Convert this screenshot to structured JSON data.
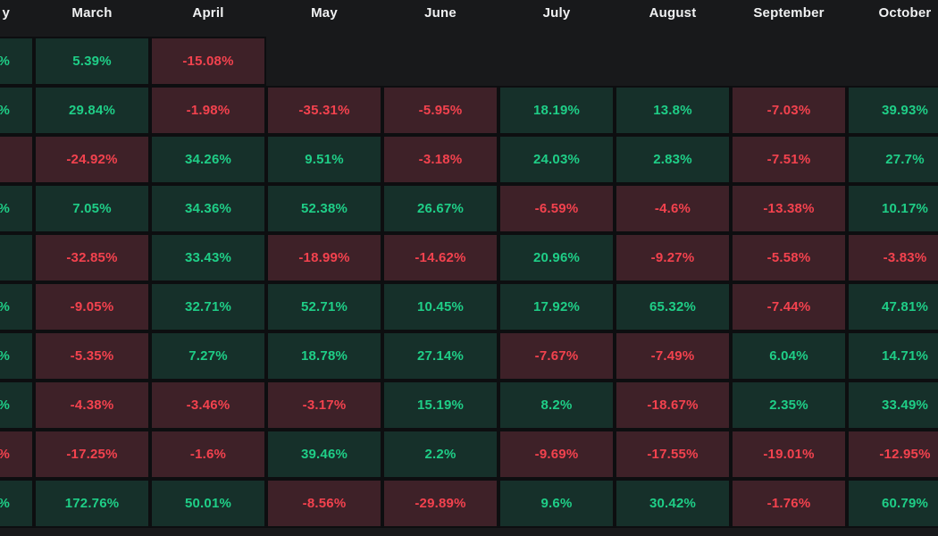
{
  "colors": {
    "page_background": "#18191b",
    "grid_line": "#0d0e10",
    "positive_cell_background": "#16302a",
    "positive_text": "#1fce87",
    "negative_cell_background": "#3e2128",
    "negative_text": "#f3424e",
    "header_text": "#f0f1f2"
  },
  "chart_data": {
    "type": "heatmap",
    "unit": "%",
    "note_layout": "monthly returns table, first column and last column clipped by viewport edges",
    "columns": [
      {
        "label": "y",
        "partial": true
      },
      {
        "label": "March",
        "partial": false
      },
      {
        "label": "April",
        "partial": false
      },
      {
        "label": "May",
        "partial": false
      },
      {
        "label": "June",
        "partial": false
      },
      {
        "label": "July",
        "partial": false
      },
      {
        "label": "August",
        "partial": false
      },
      {
        "label": "September",
        "partial": false
      },
      {
        "label": "October",
        "partial": false
      }
    ],
    "rows": [
      [
        {
          "value": "%",
          "sign": "pos"
        },
        {
          "value": "5.39%",
          "sign": "pos"
        },
        {
          "value": "-15.08%",
          "sign": "neg"
        },
        null,
        null,
        null,
        null,
        null,
        null
      ],
      [
        {
          "value": "%",
          "sign": "pos"
        },
        {
          "value": "29.84%",
          "sign": "pos"
        },
        {
          "value": "-1.98%",
          "sign": "neg"
        },
        {
          "value": "-35.31%",
          "sign": "neg"
        },
        {
          "value": "-5.95%",
          "sign": "neg"
        },
        {
          "value": "18.19%",
          "sign": "pos"
        },
        {
          "value": "13.8%",
          "sign": "pos"
        },
        {
          "value": "-7.03%",
          "sign": "neg"
        },
        {
          "value": "39.93%",
          "sign": "pos"
        }
      ],
      [
        {
          "value": "",
          "sign": "neg"
        },
        {
          "value": "-24.92%",
          "sign": "neg"
        },
        {
          "value": "34.26%",
          "sign": "pos"
        },
        {
          "value": "9.51%",
          "sign": "pos"
        },
        {
          "value": "-3.18%",
          "sign": "neg"
        },
        {
          "value": "24.03%",
          "sign": "pos"
        },
        {
          "value": "2.83%",
          "sign": "pos"
        },
        {
          "value": "-7.51%",
          "sign": "neg"
        },
        {
          "value": "27.7%",
          "sign": "pos"
        }
      ],
      [
        {
          "value": "%",
          "sign": "pos"
        },
        {
          "value": "7.05%",
          "sign": "pos"
        },
        {
          "value": "34.36%",
          "sign": "pos"
        },
        {
          "value": "52.38%",
          "sign": "pos"
        },
        {
          "value": "26.67%",
          "sign": "pos"
        },
        {
          "value": "-6.59%",
          "sign": "neg"
        },
        {
          "value": "-4.6%",
          "sign": "neg"
        },
        {
          "value": "-13.38%",
          "sign": "neg"
        },
        {
          "value": "10.17%",
          "sign": "pos"
        }
      ],
      [
        {
          "value": "",
          "sign": "pos"
        },
        {
          "value": "-32.85%",
          "sign": "neg"
        },
        {
          "value": "33.43%",
          "sign": "pos"
        },
        {
          "value": "-18.99%",
          "sign": "neg"
        },
        {
          "value": "-14.62%",
          "sign": "neg"
        },
        {
          "value": "20.96%",
          "sign": "pos"
        },
        {
          "value": "-9.27%",
          "sign": "neg"
        },
        {
          "value": "-5.58%",
          "sign": "neg"
        },
        {
          "value": "-3.83%",
          "sign": "neg"
        }
      ],
      [
        {
          "value": "%",
          "sign": "pos"
        },
        {
          "value": "-9.05%",
          "sign": "neg"
        },
        {
          "value": "32.71%",
          "sign": "pos"
        },
        {
          "value": "52.71%",
          "sign": "pos"
        },
        {
          "value": "10.45%",
          "sign": "pos"
        },
        {
          "value": "17.92%",
          "sign": "pos"
        },
        {
          "value": "65.32%",
          "sign": "pos"
        },
        {
          "value": "-7.44%",
          "sign": "neg"
        },
        {
          "value": "47.81%",
          "sign": "pos"
        }
      ],
      [
        {
          "value": "%",
          "sign": "pos"
        },
        {
          "value": "-5.35%",
          "sign": "neg"
        },
        {
          "value": "7.27%",
          "sign": "pos"
        },
        {
          "value": "18.78%",
          "sign": "pos"
        },
        {
          "value": "27.14%",
          "sign": "pos"
        },
        {
          "value": "-7.67%",
          "sign": "neg"
        },
        {
          "value": "-7.49%",
          "sign": "neg"
        },
        {
          "value": "6.04%",
          "sign": "pos"
        },
        {
          "value": "14.71%",
          "sign": "pos"
        }
      ],
      [
        {
          "value": "%",
          "sign": "pos"
        },
        {
          "value": "-4.38%",
          "sign": "neg"
        },
        {
          "value": "-3.46%",
          "sign": "neg"
        },
        {
          "value": "-3.17%",
          "sign": "neg"
        },
        {
          "value": "15.19%",
          "sign": "pos"
        },
        {
          "value": "8.2%",
          "sign": "pos"
        },
        {
          "value": "-18.67%",
          "sign": "neg"
        },
        {
          "value": "2.35%",
          "sign": "pos"
        },
        {
          "value": "33.49%",
          "sign": "pos"
        }
      ],
      [
        {
          "value": "%",
          "sign": "neg"
        },
        {
          "value": "-17.25%",
          "sign": "neg"
        },
        {
          "value": "-1.6%",
          "sign": "neg"
        },
        {
          "value": "39.46%",
          "sign": "pos"
        },
        {
          "value": "2.2%",
          "sign": "pos"
        },
        {
          "value": "-9.69%",
          "sign": "neg"
        },
        {
          "value": "-17.55%",
          "sign": "neg"
        },
        {
          "value": "-19.01%",
          "sign": "neg"
        },
        {
          "value": "-12.95%",
          "sign": "neg"
        }
      ],
      [
        {
          "value": "%",
          "sign": "pos"
        },
        {
          "value": "172.76%",
          "sign": "pos"
        },
        {
          "value": "50.01%",
          "sign": "pos"
        },
        {
          "value": "-8.56%",
          "sign": "neg"
        },
        {
          "value": "-29.89%",
          "sign": "neg"
        },
        {
          "value": "9.6%",
          "sign": "pos"
        },
        {
          "value": "30.42%",
          "sign": "pos"
        },
        {
          "value": "-1.76%",
          "sign": "neg"
        },
        {
          "value": "60.79%",
          "sign": "pos"
        }
      ]
    ]
  }
}
